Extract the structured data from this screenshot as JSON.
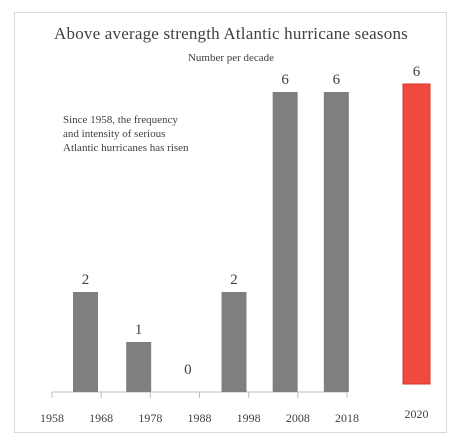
{
  "chart_data": {
    "type": "bar",
    "title": "Above average strength Atlantic hurricane seasons",
    "subtitle": "Number per decade",
    "annotation": "Since 1958, the frequency\nand intensity of serious\nAtlantic hurricanes has risen",
    "categories": [
      "1958",
      "1968",
      "1978",
      "1988",
      "1998",
      "2008"
    ],
    "values": [
      2,
      1,
      0,
      2,
      6,
      6
    ],
    "x_tick_labels": [
      "1958",
      "1968",
      "1978",
      "1988",
      "1998",
      "2008",
      "2018"
    ],
    "highlight": {
      "label": "2020",
      "value": 6
    },
    "ylim": [
      0,
      6
    ],
    "grid": false,
    "colors": {
      "bar": "#7f7f7f",
      "highlight": "#f04a3e",
      "highlight_edge": "#d8352a",
      "axis": "#bfbfbf",
      "text": "#404040"
    }
  }
}
